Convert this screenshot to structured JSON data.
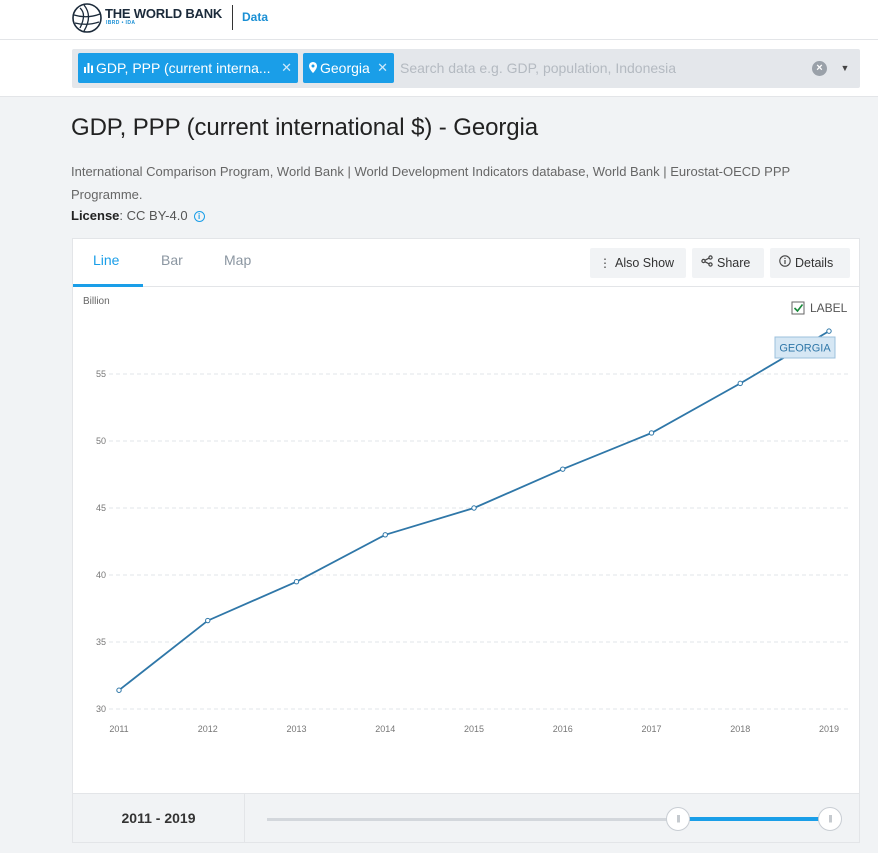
{
  "header": {
    "brand": "THE WORLD BANK",
    "brand_sub": "IBRD • IDA",
    "data_link": "Data"
  },
  "search": {
    "tags": [
      {
        "label": "GDP, PPP (current interna...",
        "icon": "bar-chart-icon"
      },
      {
        "label": "Georgia",
        "icon": "location-pin-icon"
      }
    ],
    "placeholder": "Search data e.g. GDP, population, Indonesia"
  },
  "page": {
    "title": "GDP, PPP (current international $) - Georgia",
    "source": "International Comparison Program, World Bank | World Development Indicators database, World Bank | Eurostat-OECD PPP Programme.",
    "license_label": "License",
    "license_value": ": CC BY-4.0"
  },
  "tabs": [
    "Line",
    "Bar",
    "Map"
  ],
  "actions": {
    "also_show": "Also Show",
    "share": "Share",
    "details": "Details"
  },
  "chart_data": {
    "type": "line",
    "title": "GDP, PPP (current international $) - Georgia",
    "ylabel": "Billion",
    "xlabel": "",
    "x": [
      "2011",
      "2012",
      "2013",
      "2014",
      "2015",
      "2016",
      "2017",
      "2018",
      "2019"
    ],
    "series": [
      {
        "name": "GEORGIA",
        "values": [
          31.4,
          36.6,
          39.5,
          43.0,
          45.0,
          47.9,
          50.6,
          54.3,
          58.2
        ]
      }
    ],
    "yticks": [
      "30",
      "35",
      "40",
      "45",
      "50",
      "55"
    ],
    "ylim": [
      30,
      58.5
    ],
    "label_toggle": "LABEL",
    "label_checked": true,
    "grid": true,
    "colors": {
      "line": "#2f77a8",
      "accent": "#1a9ee8"
    }
  },
  "range": {
    "label": "2011 - 2019",
    "start": "2011",
    "end": "2019"
  }
}
